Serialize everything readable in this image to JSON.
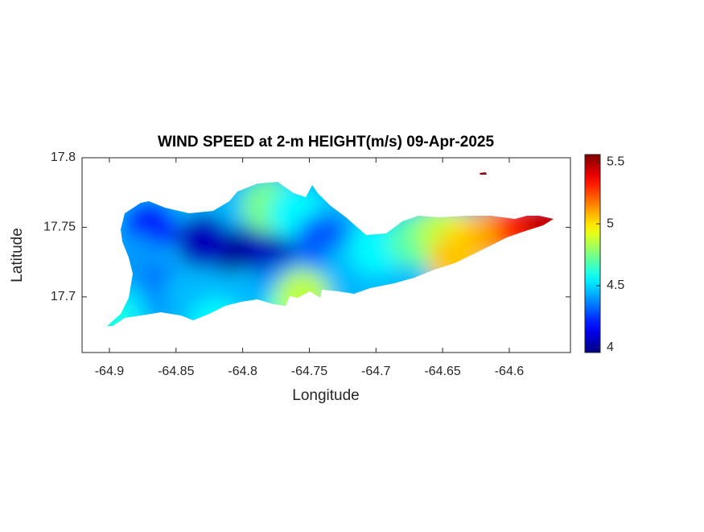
{
  "chart_data": {
    "type": "contourmap",
    "title": "WIND SPEED at 2-m HEIGHT(m/s) 09-Apr-2025",
    "xlabel": "Longitude",
    "ylabel": "Latitude",
    "xlim": [
      -64.9205,
      -64.5541
    ],
    "ylim": [
      17.66,
      17.8
    ],
    "xticks": [
      -64.9,
      -64.85,
      -64.8,
      -64.75,
      -64.7,
      -64.65,
      -64.6
    ],
    "yticks": [
      17.7,
      17.75,
      17.8
    ],
    "colormap": "jet",
    "clim": [
      3.96,
      5.56
    ],
    "cticks": [
      4,
      4.5,
      5,
      5.5
    ],
    "x": [
      -64.8,
      -64.83,
      -64.78,
      -64.87,
      -64.88,
      -64.86,
      -64.89,
      -64.84,
      -64.8,
      -64.77,
      -64.765,
      -64.755,
      -64.78,
      -64.76,
      -64.74,
      -64.72,
      -64.7,
      -64.67,
      -64.65,
      -64.63,
      -64.61,
      -64.59,
      -64.57,
      -64.64,
      -64.622,
      -64.82,
      -64.9
    ],
    "y": [
      17.73,
      17.74,
      17.735,
      17.75,
      17.725,
      17.705,
      17.69,
      17.7,
      17.7,
      17.705,
      17.69,
      17.7,
      17.765,
      17.76,
      17.74,
      17.72,
      17.735,
      17.74,
      17.745,
      17.74,
      17.745,
      17.75,
      17.753,
      17.725,
      17.787,
      17.68,
      17.68
    ],
    "values": [
      3.98,
      4.05,
      4.05,
      4.2,
      4.4,
      4.35,
      4.5,
      4.45,
      4.45,
      4.4,
      4.6,
      4.85,
      4.75,
      4.55,
      4.3,
      4.45,
      4.55,
      4.7,
      4.85,
      5.0,
      5.1,
      5.3,
      5.45,
      5.05,
      5.55,
      4.55,
      4.6
    ]
  }
}
